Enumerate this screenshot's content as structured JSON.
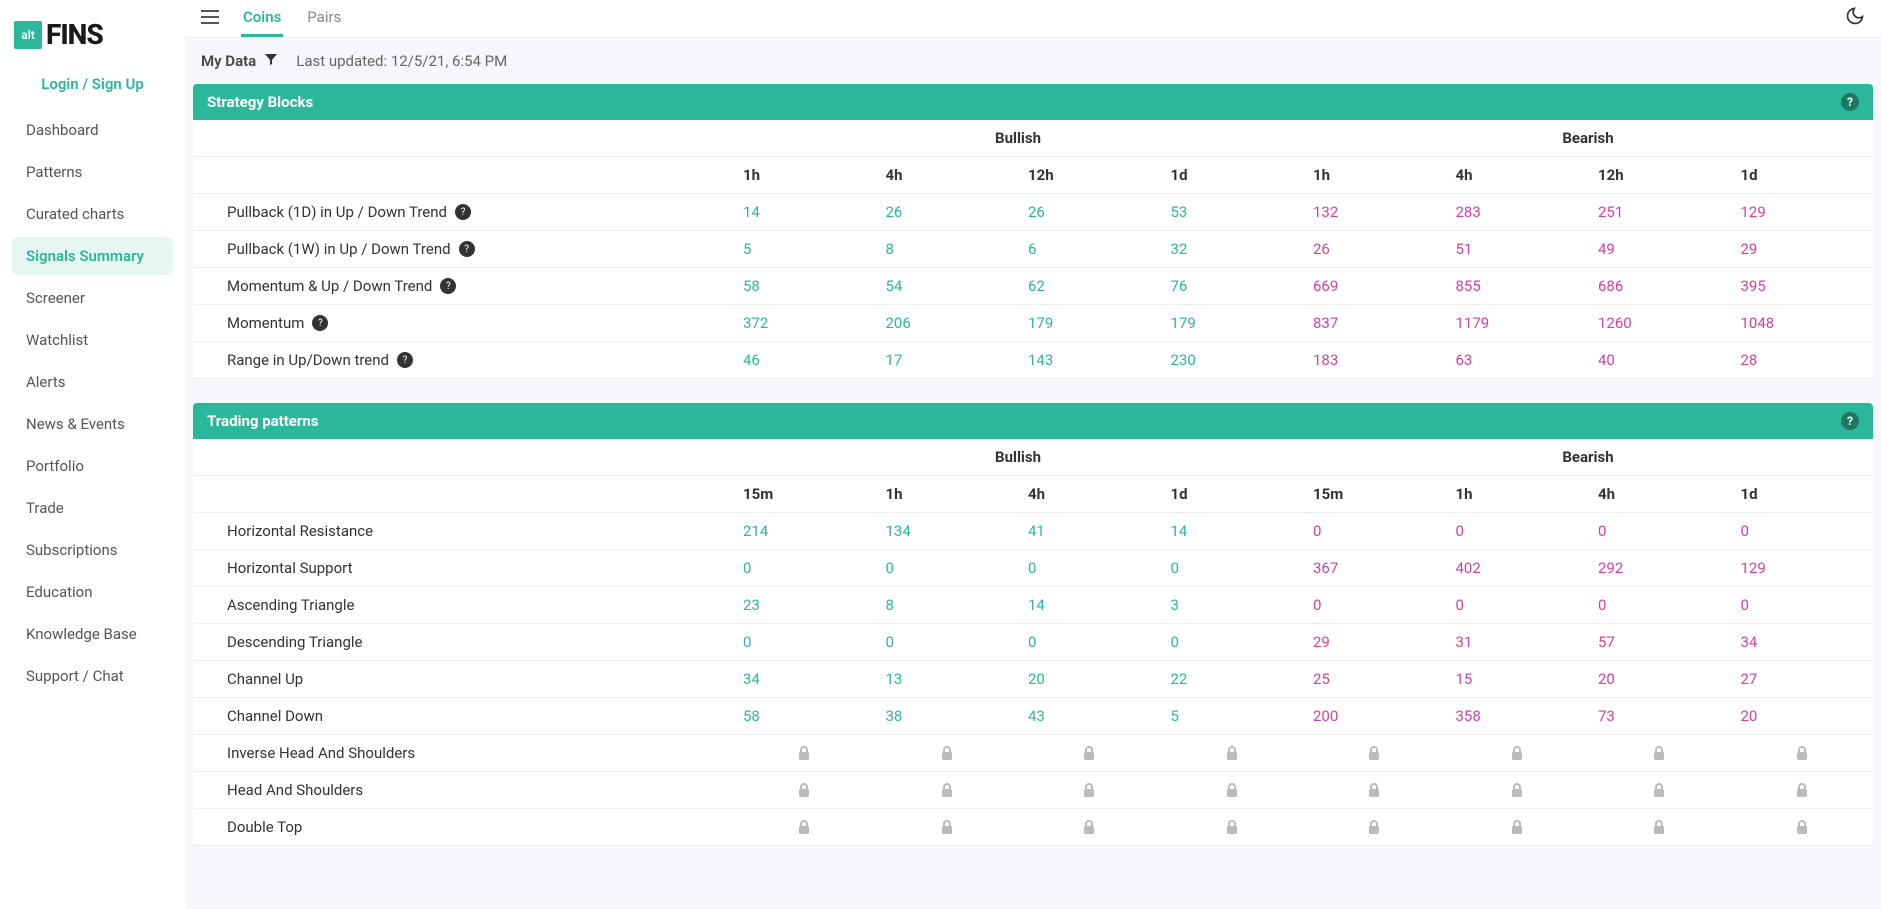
{
  "logo": {
    "box": "alt",
    "text": "FINS"
  },
  "login_label": "Login / Sign Up",
  "nav": [
    "Dashboard",
    "Patterns",
    "Curated charts",
    "Signals Summary",
    "Screener",
    "Watchlist",
    "Alerts",
    "News & Events",
    "Portfolio",
    "Trade",
    "Subscriptions",
    "Education",
    "Knowledge Base",
    "Support / Chat"
  ],
  "nav_active_index": 3,
  "tabs": [
    "Coins",
    "Pairs"
  ],
  "tab_active_index": 0,
  "mydata_label": "My Data",
  "last_updated": "Last updated: 12/5/21, 6:54 PM",
  "section1": {
    "title": "Strategy Blocks",
    "group_labels": [
      "Bullish",
      "Bearish"
    ],
    "col_labels": [
      "1h",
      "4h",
      "12h",
      "1d"
    ],
    "rows": [
      {
        "label": "Pullback (1D) in Up / Down Trend",
        "help": true,
        "bull": [
          14,
          26,
          26,
          53
        ],
        "bear": [
          132,
          283,
          251,
          129
        ]
      },
      {
        "label": "Pullback (1W) in Up / Down Trend",
        "help": true,
        "bull": [
          5,
          8,
          6,
          32
        ],
        "bear": [
          26,
          51,
          49,
          29
        ]
      },
      {
        "label": "Momentum & Up / Down Trend",
        "help": true,
        "bull": [
          58,
          54,
          62,
          76
        ],
        "bear": [
          669,
          855,
          686,
          395
        ]
      },
      {
        "label": "Momentum",
        "help": true,
        "bull": [
          372,
          206,
          179,
          179
        ],
        "bear": [
          837,
          1179,
          1260,
          1048
        ]
      },
      {
        "label": "Range in Up/Down trend",
        "help": true,
        "bull": [
          46,
          17,
          143,
          230
        ],
        "bear": [
          183,
          63,
          40,
          28
        ]
      }
    ]
  },
  "section2": {
    "title": "Trading patterns",
    "group_labels": [
      "Bullish",
      "Bearish"
    ],
    "col_labels": [
      "15m",
      "1h",
      "4h",
      "1d"
    ],
    "rows": [
      {
        "label": "Horizontal Resistance",
        "bull": [
          214,
          134,
          41,
          14
        ],
        "bear": [
          0,
          0,
          0,
          0
        ]
      },
      {
        "label": "Horizontal Support",
        "bull": [
          0,
          0,
          0,
          0
        ],
        "bear": [
          367,
          402,
          292,
          129
        ]
      },
      {
        "label": "Ascending Triangle",
        "bull": [
          23,
          8,
          14,
          3
        ],
        "bear": [
          0,
          0,
          0,
          0
        ]
      },
      {
        "label": "Descending Triangle",
        "bull": [
          0,
          0,
          0,
          0
        ],
        "bear": [
          29,
          31,
          57,
          34
        ]
      },
      {
        "label": "Channel Up",
        "bull": [
          34,
          13,
          20,
          22
        ],
        "bear": [
          25,
          15,
          20,
          27
        ]
      },
      {
        "label": "Channel Down",
        "bull": [
          58,
          38,
          43,
          5
        ],
        "bear": [
          200,
          358,
          73,
          20
        ]
      },
      {
        "label": "Inverse Head And Shoulders",
        "locked": true
      },
      {
        "label": "Head And Shoulders",
        "locked": true
      },
      {
        "label": "Double Top",
        "locked": true
      }
    ]
  },
  "colors": {
    "accent": "#2bb89a",
    "bear": "#d63fa1",
    "bg": "#f5f7fa"
  }
}
